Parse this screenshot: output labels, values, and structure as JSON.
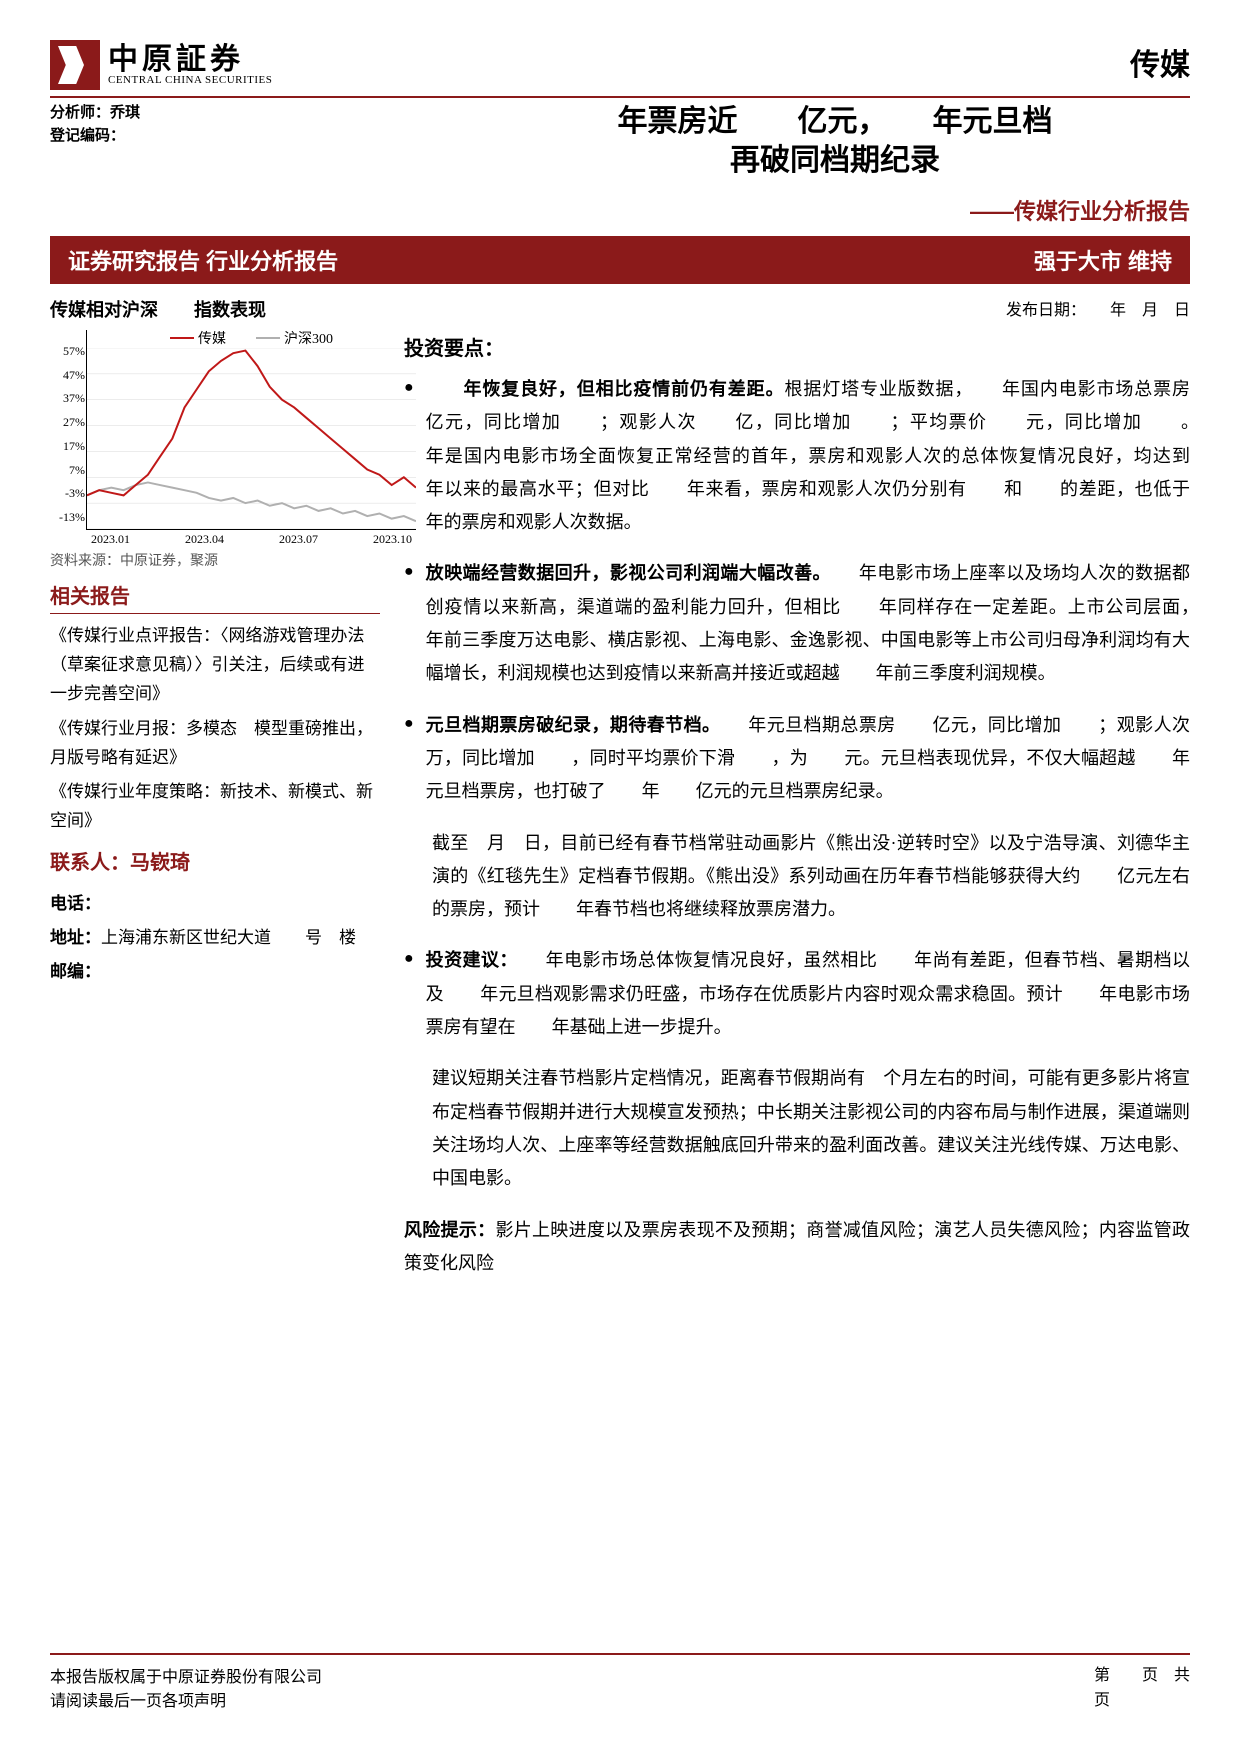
{
  "header": {
    "logo_cn": "中原証券",
    "logo_en": "CENTRAL CHINA SECURITIES",
    "sector": "传媒",
    "analyst_label": "分析师：",
    "analyst_name": "乔琪",
    "reg_label": "登记编码：",
    "reg_code": ""
  },
  "title": {
    "line1": "年票房近　　亿元，　　年元旦档",
    "line2": "再破同档期纪录",
    "subtitle": "——传媒行业分析报告"
  },
  "band": {
    "left": "证券研究报告 行业分析报告",
    "right": "强于大市 维持"
  },
  "left": {
    "chart_title": "传媒相对沪深　　指数表现",
    "legend": {
      "a": "传媒",
      "b": "沪深300"
    },
    "chart": {
      "colors": {
        "a": "#c01818",
        "b": "#b0b0b0",
        "grid": "#d9d9d9"
      },
      "y_labels": [
        "57%",
        "47%",
        "37%",
        "27%",
        "17%",
        "7%",
        "-3%",
        "-13%"
      ],
      "x_labels": [
        "2023.01",
        "2023.04",
        "2023.07",
        "2023.10"
      ],
      "ylim": [
        -13,
        57
      ],
      "series_a": [
        0,
        2,
        1,
        0,
        4,
        8,
        15,
        22,
        34,
        41,
        48,
        52,
        55,
        56,
        50,
        42,
        37,
        34,
        30,
        26,
        22,
        18,
        14,
        10,
        8,
        4,
        7,
        3
      ],
      "series_b": [
        0,
        2,
        3,
        2,
        4,
        5,
        4,
        3,
        2,
        1,
        -1,
        -2,
        -1,
        -3,
        -2,
        -4,
        -3,
        -5,
        -4,
        -6,
        -5,
        -7,
        -6,
        -8,
        -7,
        -9,
        -8,
        -10
      ],
      "line_width": 2
    },
    "chart_source": "资料来源：中原证券，聚源",
    "related_heading": "相关报告",
    "reports": [
      "《传媒行业点评报告：〈网络游戏管理办法（草案征求意见稿）〉引关注，后续或有进一步完善空间》",
      "《传媒行业月报：多模态　模型重磅推出，　月版号略有延迟》",
      "《传媒行业年度策略：新技术、新模式、新空间》"
    ],
    "contact_heading": "联系人：马嵚琦",
    "phone_label": "电话：",
    "phone": "",
    "addr_label": "地址：",
    "addr": "上海浦东新区世纪大道　　号　楼",
    "zip_label": "邮编：",
    "zip": ""
  },
  "right": {
    "pub_date": "发布日期：　　年　月　日",
    "heading": "投资要点：",
    "bullets": [
      {
        "lead": "　　年恢复良好，但相比疫情前仍有差距。",
        "body": "根据灯塔专业版数据，　　年国内电影市场总票房　　亿元，同比增加　　；观影人次　　亿，同比增加　　；平均票价　　元，同比增加　　。　　年是国内电影市场全面恢复正常经营的首年，票房和观影人次的总体恢复情况良好，均达到　　年以来的最高水平；但对比　　年来看，票房和观影人次仍分别有　　和　　的差距，也低于　　年的票房和观影人次数据。"
      },
      {
        "lead": "放映端经营数据回升，影视公司利润端大幅改善。",
        "body": "　　年电影市场上座率以及场均人次的数据都创疫情以来新高，渠道端的盈利能力回升，但相比　　年同样存在一定差距。上市公司层面，　　年前三季度万达电影、横店影视、上海电影、金逸影视、中国电影等上市公司归母净利润均有大幅增长，利润规模也达到疫情以来新高并接近或超越　　年前三季度利润规模。"
      },
      {
        "lead": "元旦档期票房破纪录，期待春节档。",
        "body": "　　年元旦档期总票房　　亿元，同比增加　　；观影人次　　万，同比增加　　，同时平均票价下滑　　，为　　元。元旦档表现优异，不仅大幅超越　　年元旦档票房，也打破了　　年　　亿元的元旦档票房纪录。"
      }
    ],
    "para1": "截至　月　日，目前已经有春节档常驻动画影片《熊出没·逆转时空》以及宁浩导演、刘德华主演的《红毯先生》定档春节假期。《熊出没》系列动画在历年春节档能够获得大约　　亿元左右的票房，预计　　年春节档也将继续释放票房潜力。",
    "invest_lead": "投资建议：",
    "invest_body": "　　年电影市场总体恢复情况良好，虽然相比　　年尚有差距，但春节档、暑期档以及　　年元旦档观影需求仍旺盛，市场存在优质影片内容时观众需求稳固。预计　　年电影市场票房有望在　　年基础上进一步提升。",
    "para2": "建议短期关注春节档影片定档情况，距离春节假期尚有　个月左右的时间，可能有更多影片将宣布定档春节假期并进行大规模宣发预热；中长期关注影视公司的内容布局与制作进展，渠道端则关注场均人次、上座率等经营数据触底回升带来的盈利面改善。建议关注光线传媒、万达电影、中国电影。",
    "risk_lead": "风险提示：",
    "risk_body": "影片上映进度以及票房表现不及预期；商誉减值风险；演艺人员失德风险；内容监管政策变化风险"
  },
  "footer": {
    "l1": "本报告版权属于中原证券股份有限公司",
    "l2": "请阅读最后一页各项声明",
    "r1": "第　　页　共",
    "r2": "页"
  }
}
